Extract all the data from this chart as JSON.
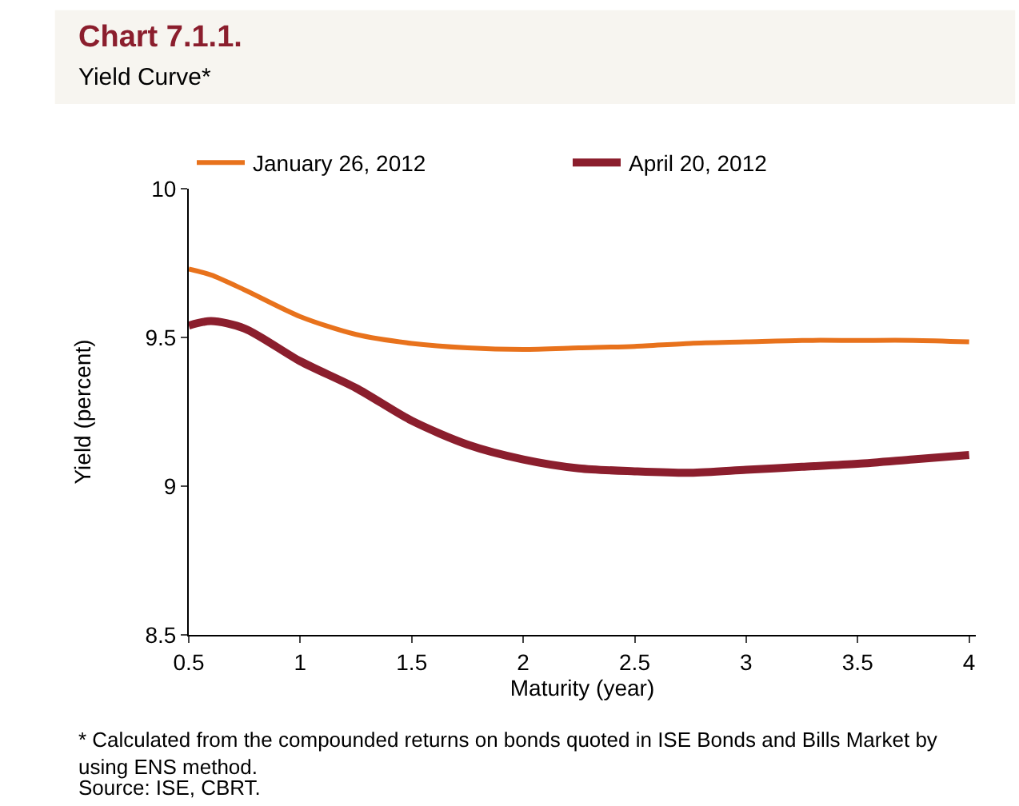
{
  "chart_data": {
    "type": "line",
    "title": "Chart 7.1.1.",
    "subtitle": "Yield Curve*",
    "xlabel": "Maturity (year)",
    "ylabel": "Yield (percent)",
    "x": [
      0.5,
      0.6,
      0.75,
      1.0,
      1.25,
      1.5,
      1.75,
      2.0,
      2.25,
      2.5,
      2.75,
      3.0,
      3.25,
      3.5,
      3.75,
      4.0
    ],
    "series": [
      {
        "name": "January 26, 2012",
        "color": "#e8721c",
        "values": [
          9.73,
          9.71,
          9.66,
          9.57,
          9.51,
          9.48,
          9.465,
          9.46,
          9.465,
          9.47,
          9.48,
          9.485,
          9.49,
          9.49,
          9.49,
          9.485
        ]
      },
      {
        "name": "April 20, 2012",
        "color": "#8b1e2d",
        "values": [
          9.54,
          9.555,
          9.53,
          9.42,
          9.33,
          9.22,
          9.14,
          9.09,
          9.06,
          9.05,
          9.045,
          9.055,
          9.065,
          9.075,
          9.09,
          9.105
        ]
      }
    ],
    "xlim": [
      0.5,
      4.03
    ],
    "xticks": [
      0.5,
      1,
      1.5,
      2,
      2.5,
      3,
      3.5,
      4
    ],
    "ylim": [
      8.5,
      10
    ],
    "yticks": [
      8.5,
      9,
      9.5,
      10
    ],
    "legend": "top",
    "marker": "none",
    "line_style": "solid",
    "annotations": [
      "* Calculated from the compounded returns on bonds quoted in ISE Bonds and Bills Market by using ENS method.",
      "Source: ISE, CBRT."
    ]
  }
}
